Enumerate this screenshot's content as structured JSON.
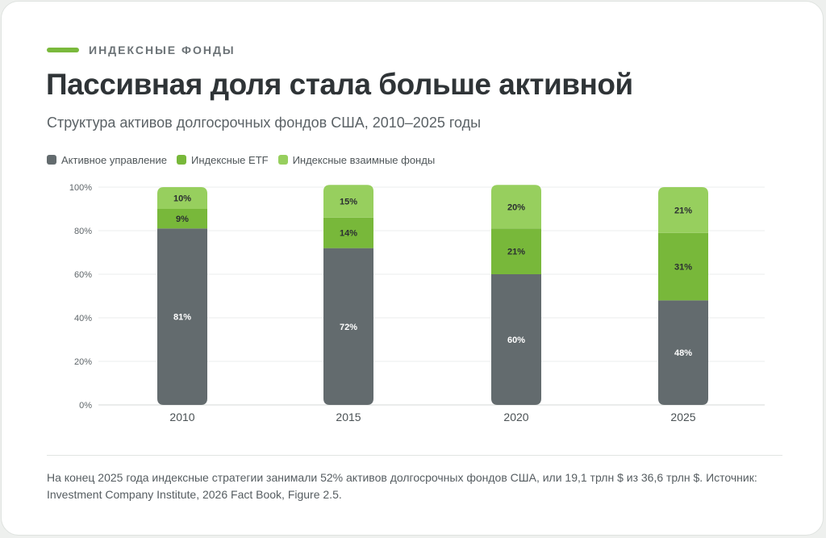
{
  "header": {
    "eyebrow": "ИНДЕКСНЫЕ ФОНДЫ",
    "title": "Пассивная доля стала больше активной",
    "subtitle": "Структура активов долгосрочных фондов США, 2010–2025 годы"
  },
  "colors": {
    "active": "#636b6e",
    "etf": "#78b83a",
    "mutual": "#97cf5e",
    "accent": "#7ab93c"
  },
  "chart_data": {
    "type": "bar",
    "stacked": true,
    "categories": [
      "2010",
      "2015",
      "2020",
      "2025"
    ],
    "series": [
      {
        "name": "Активное управление",
        "values": [
          81,
          72,
          60,
          48
        ],
        "labels": [
          "81%",
          "72%",
          "60%",
          "48%"
        ]
      },
      {
        "name": "Индексные ETF",
        "values": [
          9,
          14,
          21,
          31
        ],
        "labels": [
          "9%",
          "14%",
          "21%",
          "31%"
        ]
      },
      {
        "name": "Индексные взаимные фонды",
        "values": [
          10,
          15,
          20,
          21
        ],
        "labels": [
          "10%",
          "15%",
          "20%",
          "21%"
        ]
      }
    ],
    "ylim": [
      0,
      100
    ],
    "yticks": [
      "0%",
      "20%",
      "40%",
      "60%",
      "80%",
      "100%"
    ],
    "grid": true,
    "legend": "top-left"
  },
  "footnote": "На конец 2025 года индексные стратегии занимали 52% активов долгосрочных фондов США, или 19,1 трлн $ из 36,6 трлн $. Источник: Investment Company Institute, 2026 Fact Book, Figure 2.5."
}
